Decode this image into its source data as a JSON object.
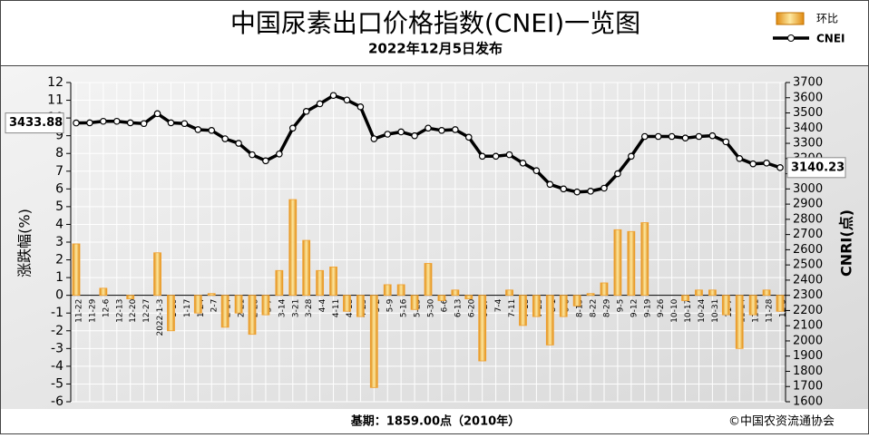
{
  "chart_data": {
    "type": "combo",
    "title": "中国尿素出口价格指数(CNEI)一览图",
    "subtitle": "2022年12月5日发布",
    "y_label": "涨跌幅(%)",
    "y2_label": "CNRI(点)",
    "footer_left": "基期：1859.00点（2010年）",
    "footer_right": "©中国农资流通协会",
    "categories": [
      "11-22",
      "11-29",
      "12-6",
      "12-13",
      "12-20",
      "12-27",
      "2022-1-3",
      "1-10",
      "1-17",
      "1-24",
      "2-7",
      "2-14",
      "2-21",
      "2-28",
      "3-7",
      "3-14",
      "3-21",
      "3-28",
      "4-4",
      "4-11",
      "4-18",
      "4-25",
      "5-2",
      "5-9",
      "5-16",
      "5-23",
      "5-30",
      "6-6",
      "6-13",
      "6-20",
      "6-27",
      "7-4",
      "7-11",
      "7-18",
      "7-25",
      "8-1",
      "8-8",
      "8-15",
      "8-22",
      "8-29",
      "9-5",
      "9-12",
      "9-19",
      "9-26",
      "10-10",
      "10-17",
      "10-24",
      "10-31",
      "11-7",
      "11-14",
      "11-21",
      "11-28",
      "12-5"
    ],
    "series": [
      {
        "name": "环比",
        "type": "bar",
        "color": "#f0a030",
        "values": [
          2.9,
          0,
          0.4,
          0,
          -0.2,
          0,
          2.4,
          -2.0,
          0,
          -1.0,
          0.1,
          -1.8,
          -1.0,
          -2.2,
          -1.1,
          1.4,
          5.4,
          3.1,
          1.4,
          1.6,
          -0.9,
          -1.2,
          -5.2,
          0.6,
          0.6,
          -0.8,
          1.8,
          -0.3,
          0.3,
          -0.2,
          -3.7,
          0,
          0.3,
          -1.7,
          -1.2,
          -2.8,
          -1.2,
          -0.6,
          0.1,
          0.7,
          3.7,
          3.6,
          4.1,
          0,
          0,
          -0.3,
          0.3,
          0.3,
          -1.1,
          -3.0,
          -1.1,
          0.3,
          -0.9
        ]
      },
      {
        "name": "CNEI",
        "type": "line",
        "axis": "y2",
        "color": "#000000",
        "values": [
          3433.88,
          3435,
          3445,
          3445,
          3435,
          3430,
          3495,
          3435,
          3430,
          3390,
          3385,
          3330,
          3300,
          3225,
          3185,
          3230,
          3400,
          3510,
          3560,
          3615,
          3585,
          3540,
          3330,
          3360,
          3375,
          3350,
          3400,
          3385,
          3390,
          3340,
          3215,
          3215,
          3225,
          3170,
          3120,
          3030,
          3000,
          2980,
          2985,
          3005,
          3100,
          3215,
          3345,
          3345,
          3345,
          3335,
          3345,
          3350,
          3310,
          3200,
          3165,
          3170,
          3140.23
        ]
      }
    ],
    "ylim": [
      -6,
      12
    ],
    "yticks": [
      -6,
      -5,
      -4,
      -3,
      -2,
      -1,
      0,
      1,
      2,
      3,
      4,
      5,
      6,
      7,
      8,
      9,
      10,
      11,
      12
    ],
    "y2lim": [
      1600,
      3700
    ],
    "y2ticks": [
      1600,
      1700,
      1800,
      1900,
      2000,
      2100,
      2200,
      2300,
      2400,
      2500,
      2600,
      2700,
      2800,
      2900,
      3000,
      3100,
      3200,
      3300,
      3400,
      3500,
      3600,
      3700
    ],
    "grid": true
  }
}
